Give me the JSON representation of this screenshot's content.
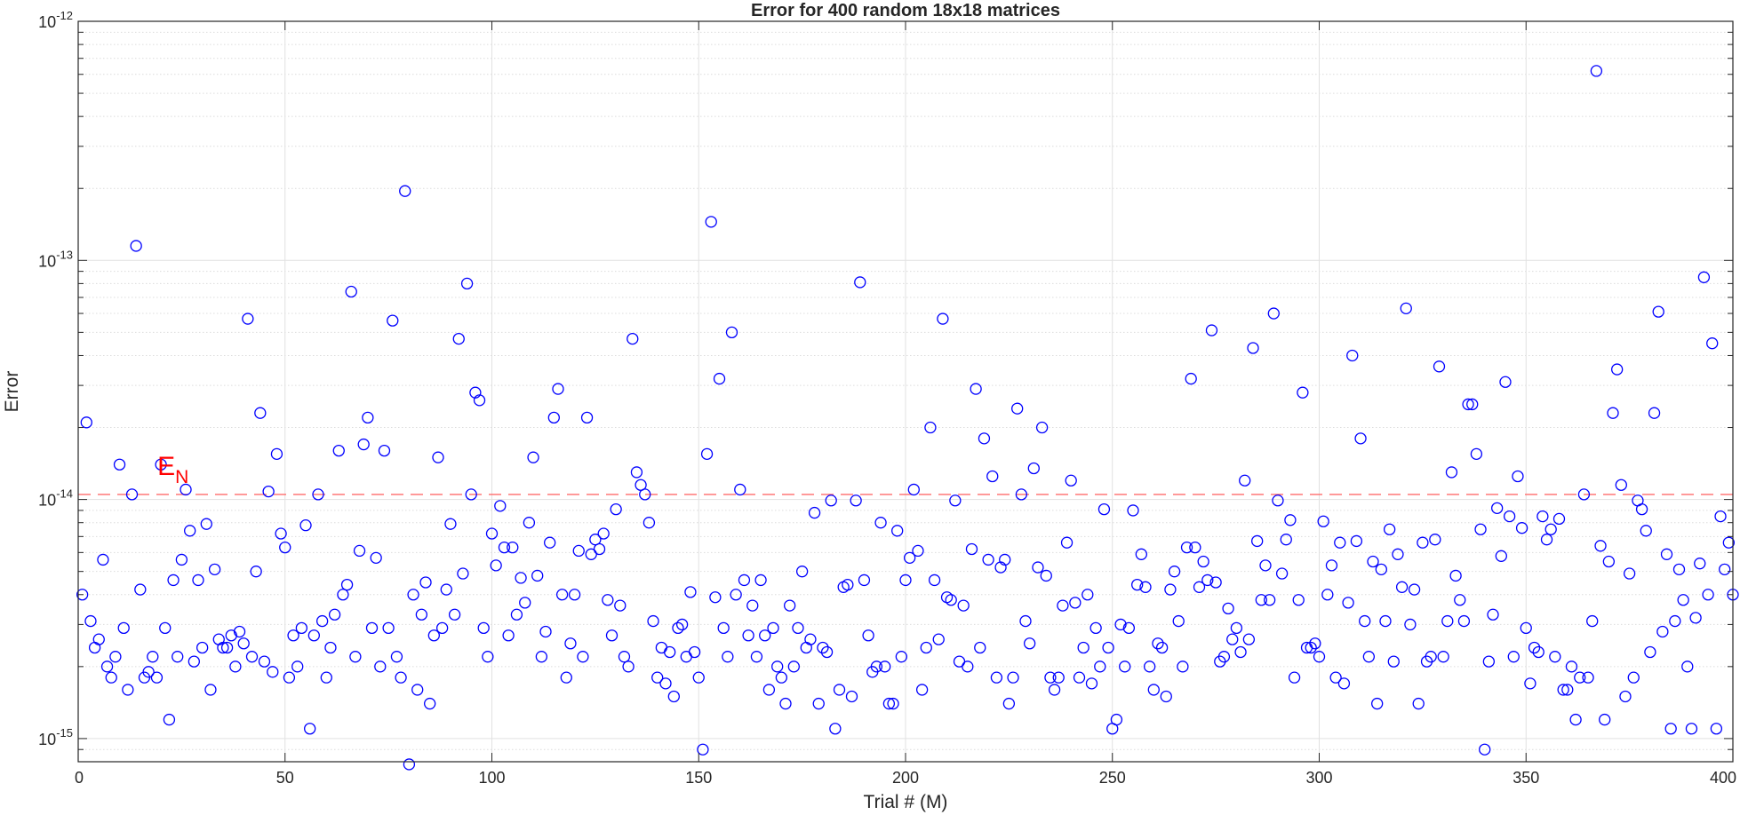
{
  "chart_data": {
    "type": "scatter",
    "title": "Error for 400 random 18x18 matrices",
    "xlabel": "Trial # (M)",
    "ylabel": "Error",
    "xlim": [
      0,
      400
    ],
    "ylim": [
      8e-16,
      1e-12
    ],
    "yscale": "log",
    "grid": true,
    "minor_grid_y": true,
    "marker": "circle-open",
    "marker_color": "#0000ff",
    "reference_line": {
      "value": 1.05e-14,
      "style": "dashed",
      "color": "#ff6b6b"
    },
    "annotation": {
      "text": "E",
      "subscript": "N",
      "color": "#ff0000",
      "x": 20,
      "y": 1.4e-14
    },
    "x_ticks": [
      0,
      50,
      100,
      150,
      200,
      250,
      300,
      350,
      400
    ],
    "x_tick_labels": [
      "0",
      "50",
      "100",
      "150",
      "200",
      "250",
      "300",
      "350",
      "400"
    ],
    "y_ticks": [
      {
        "value": 1e-15,
        "base": "10",
        "exp": "-15"
      },
      {
        "value": 1e-14,
        "base": "10",
        "exp": "-14"
      },
      {
        "value": 1e-13,
        "base": "10",
        "exp": "-13"
      },
      {
        "value": 1e-12,
        "base": "10",
        "exp": "-12"
      }
    ],
    "series": [
      {
        "x": [
          1,
          2,
          3,
          4,
          5,
          6,
          7,
          8,
          9,
          10,
          11,
          12,
          13,
          14,
          15,
          16,
          17,
          18,
          19,
          20,
          21,
          22,
          23,
          24,
          25,
          26,
          27,
          28,
          29,
          30,
          31,
          32,
          33,
          34,
          35,
          36,
          37,
          38,
          39,
          40,
          41,
          42,
          43,
          44,
          45,
          46,
          47,
          48,
          49,
          50,
          51,
          52,
          53,
          54,
          55,
          56,
          57,
          58,
          59,
          60,
          61,
          62,
          63,
          64,
          65,
          66,
          67,
          68,
          69,
          70,
          71,
          72,
          73,
          74,
          75,
          76,
          77,
          78,
          79,
          80,
          81,
          82,
          83,
          84,
          85,
          86,
          87,
          88,
          89,
          90,
          91,
          92,
          93,
          94,
          95,
          96,
          97,
          98,
          99,
          100,
          101,
          102,
          103,
          104,
          105,
          106,
          107,
          108,
          109,
          110,
          111,
          112,
          113,
          114,
          115,
          116,
          117,
          118,
          119,
          120,
          121,
          122,
          123,
          124,
          125,
          126,
          127,
          128,
          129,
          130,
          131,
          132,
          133,
          134,
          135,
          136,
          137,
          138,
          139,
          140,
          141,
          142,
          143,
          144,
          145,
          146,
          147,
          148,
          149,
          150,
          151,
          152,
          153,
          154,
          155,
          156,
          157,
          158,
          159,
          160,
          161,
          162,
          163,
          164,
          165,
          166,
          167,
          168,
          169,
          170,
          171,
          172,
          173,
          174,
          175,
          176,
          177,
          178,
          179,
          180,
          181,
          182,
          183,
          184,
          185,
          186,
          187,
          188,
          189,
          190,
          191,
          192,
          193,
          194,
          195,
          196,
          197,
          198,
          199,
          200,
          201,
          202,
          203,
          204,
          205,
          206,
          207,
          208,
          209,
          210,
          211,
          212,
          213,
          214,
          215,
          216,
          217,
          218,
          219,
          220,
          221,
          222,
          223,
          224,
          225,
          226,
          227,
          228,
          229,
          230,
          231,
          232,
          233,
          234,
          235,
          236,
          237,
          238,
          239,
          240,
          241,
          242,
          243,
          244,
          245,
          246,
          247,
          248,
          249,
          250,
          251,
          252,
          253,
          254,
          255,
          256,
          257,
          258,
          259,
          260,
          261,
          262,
          263,
          264,
          265,
          266,
          267,
          268,
          269,
          270,
          271,
          272,
          273,
          274,
          275,
          276,
          277,
          278,
          279,
          280,
          281,
          282,
          283,
          284,
          285,
          286,
          287,
          288,
          289,
          290,
          291,
          292,
          293,
          294,
          295,
          296,
          297,
          298,
          299,
          300,
          301,
          302,
          303,
          304,
          305,
          306,
          307,
          308,
          309,
          310,
          311,
          312,
          313,
          314,
          315,
          316,
          317,
          318,
          319,
          320,
          321,
          322,
          323,
          324,
          325,
          326,
          327,
          328,
          329,
          330,
          331,
          332,
          333,
          334,
          335,
          336,
          337,
          338,
          339,
          340,
          341,
          342,
          343,
          344,
          345,
          346,
          347,
          348,
          349,
          350,
          351,
          352,
          353,
          354,
          355,
          356,
          357,
          358,
          359,
          360,
          361,
          362,
          363,
          364,
          365,
          366,
          367,
          368,
          369,
          370,
          371,
          372,
          373,
          374,
          375,
          376,
          377,
          378,
          379,
          380,
          381,
          382,
          383,
          384,
          385,
          386,
          387,
          388,
          389,
          390,
          391,
          392,
          393,
          394,
          395,
          396,
          397,
          398,
          399,
          400
        ],
        "y": [
          4e-15,
          2.1e-14,
          3.1e-15,
          2.4e-15,
          2.6e-15,
          5.6e-15,
          2e-15,
          1.8e-15,
          2.2e-15,
          1.4e-14,
          2.9e-15,
          1.6e-15,
          1.05e-14,
          1.15e-13,
          4.2e-15,
          1.8e-15,
          1.9e-15,
          2.2e-15,
          1.8e-15,
          1.4e-14,
          2.9e-15,
          1.2e-15,
          4.6e-15,
          2.2e-15,
          5.6e-15,
          1.1e-14,
          7.4e-15,
          2.1e-15,
          4.6e-15,
          2.4e-15,
          7.9e-15,
          1.6e-15,
          5.1e-15,
          2.6e-15,
          2.4e-15,
          2.4e-15,
          2.7e-15,
          2e-15,
          2.8e-15,
          2.5e-15,
          5.7e-14,
          2.2e-15,
          5e-15,
          2.3e-14,
          2.1e-15,
          1.08e-14,
          1.9e-15,
          1.55e-14,
          7.2e-15,
          6.3e-15,
          1.8e-15,
          2.7e-15,
          2e-15,
          2.9e-15,
          7.8e-15,
          1.1e-15,
          2.7e-15,
          1.05e-14,
          3.1e-15,
          1.8e-15,
          2.4e-15,
          3.3e-15,
          1.6e-14,
          4e-15,
          4.4e-15,
          7.4e-14,
          2.2e-15,
          6.1e-15,
          1.7e-14,
          2.2e-14,
          2.9e-15,
          5.7e-15,
          2e-15,
          1.6e-14,
          2.9e-15,
          5.6e-14,
          2.2e-15,
          1.8e-15,
          1.95e-13,
          7.8e-16,
          4e-15,
          1.6e-15,
          3.3e-15,
          4.5e-15,
          1.4e-15,
          2.7e-15,
          1.5e-14,
          2.9e-15,
          4.2e-15,
          7.9e-15,
          3.3e-15,
          4.7e-14,
          4.9e-15,
          8e-14,
          1.05e-14,
          2.8e-14,
          2.6e-14,
          2.9e-15,
          2.2e-15,
          7.2e-15,
          5.3e-15,
          9.4e-15,
          6.3e-15,
          2.7e-15,
          6.3e-15,
          3.3e-15,
          4.7e-15,
          3.7e-15,
          8e-15,
          1.5e-14,
          4.8e-15,
          2.2e-15,
          2.8e-15,
          6.6e-15,
          2.2e-14,
          2.9e-14,
          4e-15,
          1.8e-15,
          2.5e-15,
          4e-15,
          6.1e-15,
          2.2e-15,
          2.2e-14,
          5.9e-15,
          6.8e-15,
          6.2e-15,
          7.2e-15,
          3.8e-15,
          2.7e-15,
          9.1e-15,
          3.6e-15,
          2.2e-15,
          2e-15,
          4.7e-14,
          1.3e-14,
          1.15e-14,
          1.05e-14,
          8e-15,
          3.1e-15,
          1.8e-15,
          2.4e-15,
          1.7e-15,
          2.3e-15,
          1.5e-15,
          2.9e-15,
          3e-15,
          2.2e-15,
          4.1e-15,
          2.3e-15,
          1.8e-15,
          9e-16,
          1.55e-14,
          1.45e-13,
          3.9e-15,
          3.2e-14,
          2.9e-15,
          2.2e-15,
          5e-14,
          4e-15,
          1.1e-14,
          4.6e-15,
          2.7e-15,
          3.6e-15,
          2.2e-15,
          4.6e-15,
          2.7e-15,
          1.6e-15,
          2.9e-15,
          2e-15,
          1.8e-15,
          1.4e-15,
          3.6e-15,
          2e-15,
          2.9e-15,
          5e-15,
          2.4e-15,
          2.6e-15,
          8.8e-15,
          1.4e-15,
          2.4e-15,
          2.3e-15,
          9.9e-15,
          1.1e-15,
          1.6e-15,
          4.3e-15,
          4.4e-15,
          1.5e-15,
          9.9e-15,
          8.1e-14,
          4.6e-15,
          2.7e-15,
          1.9e-15,
          2e-15,
          8e-15,
          2e-15,
          1.4e-15,
          1.4e-15,
          7.4e-15,
          2.2e-15,
          4.6e-15,
          5.7e-15,
          1.1e-14,
          6.1e-15,
          1.6e-15,
          2.4e-15,
          2e-14,
          4.6e-15,
          2.6e-15,
          5.7e-14,
          3.9e-15,
          3.8e-15,
          9.9e-15,
          2.1e-15,
          3.6e-15,
          2e-15,
          6.2e-15,
          2.9e-14,
          2.4e-15,
          1.8e-14,
          5.6e-15,
          1.25e-14,
          1.8e-15,
          5.2e-15,
          5.6e-15,
          1.4e-15,
          1.8e-15,
          2.4e-14,
          1.05e-14,
          3.1e-15,
          2.5e-15,
          1.35e-14,
          5.2e-15,
          2e-14,
          4.8e-15,
          1.8e-15,
          1.6e-15,
          1.8e-15,
          3.6e-15,
          6.6e-15,
          1.2e-14,
          3.7e-15,
          1.8e-15,
          2.4e-15,
          4e-15,
          1.7e-15,
          2.9e-15,
          2e-15,
          9.1e-15,
          2.4e-15,
          1.1e-15,
          1.2e-15,
          3e-15,
          2e-15,
          2.9e-15,
          9e-15,
          4.4e-15,
          5.9e-15,
          4.3e-15,
          2e-15,
          1.6e-15,
          2.5e-15,
          2.4e-15,
          1.5e-15,
          4.2e-15,
          5e-15,
          3.1e-15,
          2e-15,
          6.3e-15,
          3.2e-14,
          6.3e-15,
          4.3e-15,
          5.5e-15,
          4.6e-15,
          5.1e-14,
          4.5e-15,
          2.1e-15,
          2.2e-15,
          3.5e-15,
          2.6e-15,
          2.9e-15,
          2.3e-15,
          1.2e-14,
          2.6e-15,
          4.3e-14,
          6.7e-15,
          3.8e-15,
          5.3e-15,
          3.8e-15,
          6e-14,
          9.9e-15,
          4.9e-15,
          6.8e-15,
          8.2e-15,
          1.8e-15,
          3.8e-15,
          2.8e-14,
          2.4e-15,
          2.4e-15,
          2.5e-15,
          2.2e-15,
          8.1e-15,
          4e-15,
          5.3e-15,
          1.8e-15,
          6.6e-15,
          1.7e-15,
          3.7e-15,
          4e-14,
          6.7e-15,
          1.8e-14,
          3.1e-15,
          2.2e-15,
          5.5e-15,
          1.4e-15,
          5.1e-15,
          3.1e-15,
          7.5e-15,
          2.1e-15,
          5.9e-15,
          4.3e-15,
          6.3e-14,
          3e-15,
          4.2e-15,
          1.4e-15,
          6.6e-15,
          2.1e-15,
          2.2e-15,
          6.8e-15,
          3.6e-14,
          2.2e-15,
          3.1e-15,
          1.3e-14,
          4.8e-15,
          3.8e-15,
          3.1e-15,
          2.5e-14,
          2.5e-14,
          1.55e-14,
          7.5e-15,
          9e-16,
          2.1e-15,
          3.3e-15,
          9.2e-15,
          5.8e-15,
          3.1e-14,
          8.5e-15,
          2.2e-15,
          1.25e-14,
          7.6e-15,
          2.9e-15,
          1.7e-15,
          2.4e-15,
          2.3e-15,
          8.5e-15,
          6.8e-15,
          7.5e-15,
          2.2e-15,
          8.3e-15,
          1.6e-15,
          1.6e-15,
          2e-15,
          1.2e-15,
          1.8e-15,
          1.05e-14,
          1.8e-15,
          3.1e-15,
          6.2e-13,
          6.4e-15,
          1.2e-15,
          5.5e-15,
          2.3e-14,
          3.5e-14,
          1.15e-14,
          1.5e-15,
          4.9e-15,
          1.8e-15,
          9.9e-15,
          9.1e-15,
          7.4e-15,
          2.3e-15,
          2.3e-14,
          6.1e-14,
          2.8e-15,
          5.9e-15,
          1.1e-15,
          3.1e-15,
          5.1e-15,
          3.8e-15,
          2e-15,
          1.1e-15,
          3.2e-15,
          5.4e-15,
          8.5e-14,
          4e-15,
          4.5e-14,
          1.1e-15,
          8.5e-15,
          5.1e-15,
          6.6e-15,
          4e-15
        ]
      }
    ]
  }
}
